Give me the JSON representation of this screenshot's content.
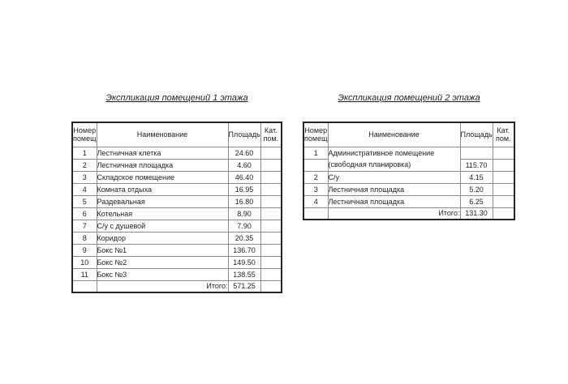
{
  "page": {
    "background": "#ffffff"
  },
  "colors": {
    "text": "#1f1f1f",
    "outer_border": "#262626",
    "grid_line": "#8c8c8c"
  },
  "tables": [
    {
      "title": "Экспликация помещений 1 этажа",
      "headers": {
        "number": "Номер\nпомещ.",
        "name": "Наименование",
        "area": "Площадь",
        "category": "Кат.\nпом."
      },
      "rows": [
        {
          "number": "1",
          "name": "Лестничная клетка",
          "area": "24.60",
          "category": ""
        },
        {
          "number": "2",
          "name": "Лестничная площадка",
          "area": "4.60",
          "category": ""
        },
        {
          "number": "3",
          "name": "Складское помещение",
          "area": "46.40",
          "category": ""
        },
        {
          "number": "4",
          "name": "Комната отдыха",
          "area": "16.95",
          "category": ""
        },
        {
          "number": "5",
          "name": "Раздевальная",
          "area": "16.80",
          "category": ""
        },
        {
          "number": "6",
          "name": "Котельная",
          "area": "8.90",
          "category": ""
        },
        {
          "number": "7",
          "name": "С/у с душевой",
          "area": "7.90",
          "category": ""
        },
        {
          "number": "8",
          "name": "Коридор",
          "area": "20.35",
          "category": ""
        },
        {
          "number": "9",
          "name": "Бокс №1",
          "area": "136.70",
          "category": ""
        },
        {
          "number": "10",
          "name": "Бокс №2",
          "area": "149.50",
          "category": ""
        },
        {
          "number": "11",
          "name": "Бокс №3",
          "area": "138.55",
          "category": ""
        }
      ],
      "total_label": "Итого:",
      "total_value": "571.25"
    },
    {
      "title": "Экспликация помещений 2 этажа",
      "headers": {
        "number": "Номер\nпомещ.",
        "name": "Наименование",
        "area": "Площадь",
        "category": "Кат.\nпом."
      },
      "rows": [
        {
          "number": "1",
          "name": "Административное помещение",
          "area": "",
          "category": "",
          "name_merge_down": true
        },
        {
          "number": "",
          "name": "(свободная планировка)",
          "area": "115.70",
          "category": "",
          "name_merge_up": true
        },
        {
          "number": "2",
          "name": "С/у",
          "area": "4.15",
          "category": ""
        },
        {
          "number": "3",
          "name": "Лестничная площадка",
          "area": "5.20",
          "category": ""
        },
        {
          "number": "4",
          "name": "Лестничная площадка",
          "area": "6.25",
          "category": ""
        }
      ],
      "total_label": "Итого:",
      "total_value": "131.30"
    }
  ]
}
